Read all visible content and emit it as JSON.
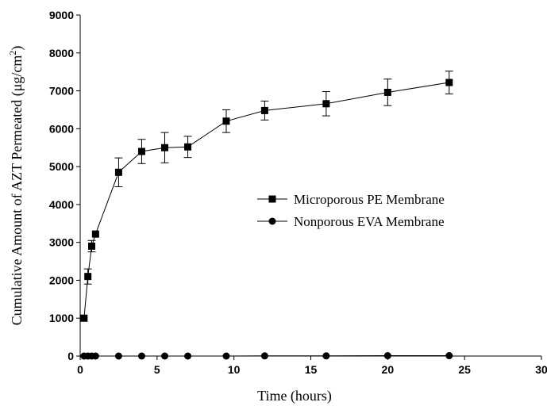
{
  "chart_data": {
    "type": "scatter",
    "xlabel": "Time (hours)",
    "ylabel": "Cumulative Amount of AZT Permeated (μg/cm",
    "ylabel_superscript": "2",
    "ylabel_suffix": ")",
    "xlim": [
      0,
      30
    ],
    "ylim": [
      0,
      9000
    ],
    "x_ticks": [
      0,
      5,
      10,
      15,
      20,
      25,
      30
    ],
    "y_ticks": [
      0,
      1000,
      2000,
      3000,
      4000,
      5000,
      6000,
      7000,
      8000,
      9000
    ],
    "grid": false,
    "legend_position": "center-right",
    "series": [
      {
        "name": "Microporous PE Membrane",
        "marker": "square",
        "color": "#000000",
        "x": [
          0.25,
          0.5,
          0.75,
          1,
          2.5,
          4,
          5.5,
          7,
          9.5,
          12,
          16,
          20,
          24
        ],
        "y": [
          1000,
          2100,
          2900,
          3220,
          4850,
          5400,
          5500,
          5520,
          6200,
          6480,
          6660,
          6960,
          7220
        ],
        "err": [
          0,
          200,
          150,
          0,
          380,
          320,
          400,
          280,
          300,
          250,
          320,
          350,
          300
        ]
      },
      {
        "name": "Nonporous EVA Membrane",
        "marker": "circle",
        "color": "#000000",
        "x": [
          0.25,
          0.5,
          0.75,
          1,
          2.5,
          4,
          5.5,
          7,
          9.5,
          12,
          16,
          20,
          24
        ],
        "y": [
          0,
          0,
          0,
          0,
          0,
          0,
          0,
          0,
          0,
          5,
          5,
          10,
          10
        ]
      }
    ]
  }
}
